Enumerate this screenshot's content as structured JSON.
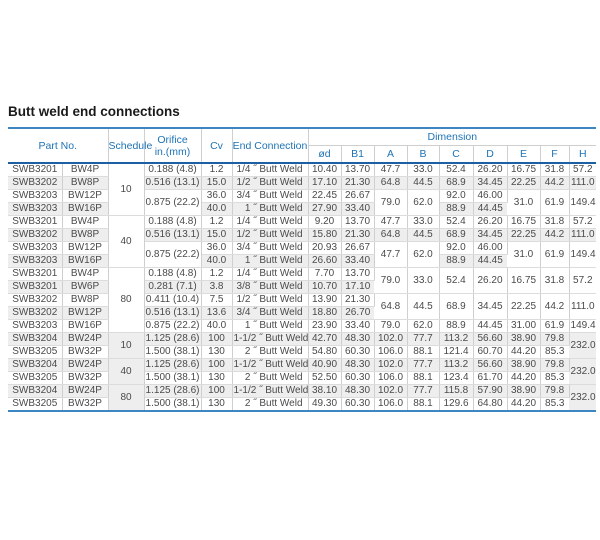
{
  "title": "Butt weld end connections",
  "colors": {
    "header_text": "#1e73b5",
    "table_outer_border": "#3c87c3",
    "header_rule": "#1c5fa3",
    "row_stripe": "#eeeeee",
    "body_text": "#4a4a4a"
  },
  "table": {
    "headers": {
      "part_no": "Part No.",
      "schedule": "Schedule",
      "orifice": "Orifice\nin.(mm)",
      "cv": "Cv",
      "end_connection": "End Connection",
      "dimension": "Dimension",
      "dim_cols": [
        "ød",
        "B1",
        "A",
        "B",
        "C",
        "D",
        "E",
        "F",
        "H"
      ]
    },
    "rows": [
      [
        {
          "t": "SWB3201"
        },
        {
          "t": "BW4P"
        },
        {
          "t": "10",
          "rs": 4
        },
        {
          "t": "0.188 (4.8)"
        },
        {
          "t": "1.2"
        },
        {
          "t": "1/4 ˝ Butt Weld"
        },
        {
          "t": "10.40"
        },
        {
          "t": "13.70"
        },
        {
          "t": "47.7"
        },
        {
          "t": "33.0"
        },
        {
          "t": "52.4"
        },
        {
          "t": "26.20"
        },
        {
          "t": "16.75"
        },
        {
          "t": "31.8"
        },
        {
          "t": "57.2"
        }
      ],
      [
        {
          "t": "SWB3202"
        },
        {
          "t": "BW8P"
        },
        {
          "t": "0.516 (13.1)"
        },
        {
          "t": "15.0"
        },
        {
          "t": "1/2 ˝ Butt Weld"
        },
        {
          "t": "17.10"
        },
        {
          "t": "21.30"
        },
        {
          "t": "64.8"
        },
        {
          "t": "44.5"
        },
        {
          "t": "68.9"
        },
        {
          "t": "34.45"
        },
        {
          "t": "22.25"
        },
        {
          "t": "44.2"
        },
        {
          "t": "111.0"
        }
      ],
      [
        {
          "t": "SWB3203"
        },
        {
          "t": "BW12P"
        },
        {
          "t": "0.875 (22.2)",
          "rs": 2
        },
        {
          "t": "36.0"
        },
        {
          "t": "3/4 ˝ Butt Weld"
        },
        {
          "t": "22.45"
        },
        {
          "t": "26.67"
        },
        {
          "t": "79.0",
          "rs": 2
        },
        {
          "t": "62.0",
          "rs": 2
        },
        {
          "t": "92.0"
        },
        {
          "t": "46.00"
        },
        {
          "t": "31.0",
          "rs": 2
        },
        {
          "t": "61.9",
          "rs": 2
        },
        {
          "t": "149.4",
          "rs": 2
        }
      ],
      [
        {
          "t": "SWB3203"
        },
        {
          "t": "BW16P"
        },
        {
          "t": "40.0"
        },
        {
          "t": "1 ˝ Butt Weld"
        },
        {
          "t": "27.90"
        },
        {
          "t": "33.40"
        },
        {
          "t": "88.9"
        },
        {
          "t": "44.45"
        }
      ],
      [
        {
          "t": "SWB3201"
        },
        {
          "t": "BW4P"
        },
        {
          "t": "40",
          "rs": 4
        },
        {
          "t": "0.188 (4.8)"
        },
        {
          "t": "1.2"
        },
        {
          "t": "1/4 ˝ Butt Weld"
        },
        {
          "t": "9.20"
        },
        {
          "t": "13.70"
        },
        {
          "t": "47.7"
        },
        {
          "t": "33.0"
        },
        {
          "t": "52.4"
        },
        {
          "t": "26.20"
        },
        {
          "t": "16.75"
        },
        {
          "t": "31.8"
        },
        {
          "t": "57.2"
        }
      ],
      [
        {
          "t": "SWB3202"
        },
        {
          "t": "BW8P"
        },
        {
          "t": "0.516 (13.1)"
        },
        {
          "t": "15.0"
        },
        {
          "t": "1/2 ˝ Butt Weld"
        },
        {
          "t": "15.80"
        },
        {
          "t": "21.30"
        },
        {
          "t": "64.8"
        },
        {
          "t": "44.5"
        },
        {
          "t": "68.9"
        },
        {
          "t": "34.45"
        },
        {
          "t": "22.25"
        },
        {
          "t": "44.2"
        },
        {
          "t": "111.0"
        }
      ],
      [
        {
          "t": "SWB3203"
        },
        {
          "t": "BW12P"
        },
        {
          "t": "0.875 (22.2)",
          "rs": 2
        },
        {
          "t": "36.0"
        },
        {
          "t": "3/4 ˝ Butt Weld"
        },
        {
          "t": "20.93"
        },
        {
          "t": "26.67"
        },
        {
          "t": "47.7",
          "rs": 2
        },
        {
          "t": "62.0",
          "rs": 2
        },
        {
          "t": "92.0"
        },
        {
          "t": "46.00"
        },
        {
          "t": "31.0",
          "rs": 2
        },
        {
          "t": "61.9",
          "rs": 2
        },
        {
          "t": "149.4",
          "rs": 2
        }
      ],
      [
        {
          "t": "SWB3203"
        },
        {
          "t": "BW16P"
        },
        {
          "t": "40.0"
        },
        {
          "t": "1 ˝ Butt Weld"
        },
        {
          "t": "26.60"
        },
        {
          "t": "33.40"
        },
        {
          "t": "88.9"
        },
        {
          "t": "44.45"
        }
      ],
      [
        {
          "t": "SWB3201"
        },
        {
          "t": "BW4P"
        },
        {
          "t": "80",
          "rs": 5
        },
        {
          "t": "0.188 (4.8)"
        },
        {
          "t": "1.2"
        },
        {
          "t": "1/4 ˝ Butt Weld"
        },
        {
          "t": "7.70"
        },
        {
          "t": "13.70"
        },
        {
          "t": "79.0",
          "rs": 2
        },
        {
          "t": "33.0",
          "rs": 2
        },
        {
          "t": "52.4",
          "rs": 2
        },
        {
          "t": "26.20",
          "rs": 2
        },
        {
          "t": "16.75",
          "rs": 2
        },
        {
          "t": "31.8",
          "rs": 2
        },
        {
          "t": "57.2",
          "rs": 2
        }
      ],
      [
        {
          "t": "SWB3201"
        },
        {
          "t": "BW6P"
        },
        {
          "t": "0.281 (7.1)"
        },
        {
          "t": "3.8"
        },
        {
          "t": "3/8 ˝ Butt Weld"
        },
        {
          "t": "10.70"
        },
        {
          "t": "17.10"
        }
      ],
      [
        {
          "t": "SWB3202"
        },
        {
          "t": "BW8P"
        },
        {
          "t": "0.411 (10.4)"
        },
        {
          "t": "7.5"
        },
        {
          "t": "1/2 ˝ Butt Weld"
        },
        {
          "t": "13.90"
        },
        {
          "t": "21.30"
        },
        {
          "t": "64.8",
          "rs": 2
        },
        {
          "t": "44.5",
          "rs": 2
        },
        {
          "t": "68.9",
          "rs": 2
        },
        {
          "t": "34.45",
          "rs": 2
        },
        {
          "t": "22.25",
          "rs": 2
        },
        {
          "t": "44.2",
          "rs": 2
        },
        {
          "t": "111.0",
          "rs": 2
        }
      ],
      [
        {
          "t": "SWB3202"
        },
        {
          "t": "BW12P"
        },
        {
          "t": "0.516 (13.1)"
        },
        {
          "t": "13.6"
        },
        {
          "t": "3/4 ˝ Butt Weld"
        },
        {
          "t": "18.80"
        },
        {
          "t": "26.70"
        }
      ],
      [
        {
          "t": "SWB3203"
        },
        {
          "t": "BW16P"
        },
        {
          "t": "0.875 (22.2)"
        },
        {
          "t": "40.0"
        },
        {
          "t": "1 ˝ Butt Weld"
        },
        {
          "t": "23.90"
        },
        {
          "t": "33.40"
        },
        {
          "t": "79.0"
        },
        {
          "t": "62.0"
        },
        {
          "t": "88.9"
        },
        {
          "t": "44.45"
        },
        {
          "t": "31.00"
        },
        {
          "t": "61.9"
        },
        {
          "t": "149.4"
        }
      ],
      [
        {
          "t": "SWB3204"
        },
        {
          "t": "BW24P"
        },
        {
          "t": "10",
          "rs": 2
        },
        {
          "t": "1.125 (28.6)"
        },
        {
          "t": "100"
        },
        {
          "t": "1-1/2 ˝ Butt Weld"
        },
        {
          "t": "42.70"
        },
        {
          "t": "48.30"
        },
        {
          "t": "102.0"
        },
        {
          "t": "77.7"
        },
        {
          "t": "113.2"
        },
        {
          "t": "56.60"
        },
        {
          "t": "38.90"
        },
        {
          "t": "79.8"
        },
        {
          "t": "232.0",
          "rs": 2
        }
      ],
      [
        {
          "t": "SWB3205"
        },
        {
          "t": "BW32P"
        },
        {
          "t": "1.500 (38.1)"
        },
        {
          "t": "130"
        },
        {
          "t": "2 ˝ Butt Weld"
        },
        {
          "t": "54.80"
        },
        {
          "t": "60.30"
        },
        {
          "t": "106.0"
        },
        {
          "t": "88.1"
        },
        {
          "t": "121.4"
        },
        {
          "t": "60.70"
        },
        {
          "t": "44.20"
        },
        {
          "t": "85.3"
        }
      ],
      [
        {
          "t": "SWB3204"
        },
        {
          "t": "BW24P"
        },
        {
          "t": "40",
          "rs": 2
        },
        {
          "t": "1.125 (28.6)"
        },
        {
          "t": "100"
        },
        {
          "t": "1-1/2 ˝ Butt Weld"
        },
        {
          "t": "40.90"
        },
        {
          "t": "48.30"
        },
        {
          "t": "102.0"
        },
        {
          "t": "77.7"
        },
        {
          "t": "113.2"
        },
        {
          "t": "56.60"
        },
        {
          "t": "38.90"
        },
        {
          "t": "79.8"
        },
        {
          "t": "232.0",
          "rs": 2
        }
      ],
      [
        {
          "t": "SWB3205"
        },
        {
          "t": "BW32P"
        },
        {
          "t": "1.500 (38.1)"
        },
        {
          "t": "130"
        },
        {
          "t": "2 ˝ Butt Weld"
        },
        {
          "t": "52.50"
        },
        {
          "t": "60.30"
        },
        {
          "t": "106.0"
        },
        {
          "t": "88.1"
        },
        {
          "t": "123.4"
        },
        {
          "t": "61.70"
        },
        {
          "t": "44.20"
        },
        {
          "t": "85.3"
        }
      ],
      [
        {
          "t": "SWB3204"
        },
        {
          "t": "BW24P"
        },
        {
          "t": "80",
          "rs": 2
        },
        {
          "t": "1.125 (28.6)"
        },
        {
          "t": "100"
        },
        {
          "t": "1-1/2 ˝ Butt Weld"
        },
        {
          "t": "38.10"
        },
        {
          "t": "48.30"
        },
        {
          "t": "102.0"
        },
        {
          "t": "77.7"
        },
        {
          "t": "115.8"
        },
        {
          "t": "57.90"
        },
        {
          "t": "38.90"
        },
        {
          "t": "79.8"
        },
        {
          "t": "232.0",
          "rs": 2
        }
      ],
      [
        {
          "t": "SWB3205"
        },
        {
          "t": "BW32P"
        },
        {
          "t": "1.500 (38.1)"
        },
        {
          "t": "130"
        },
        {
          "t": "2 ˝ Butt Weld"
        },
        {
          "t": "49.30"
        },
        {
          "t": "60.30"
        },
        {
          "t": "106.0"
        },
        {
          "t": "88.1"
        },
        {
          "t": "129.6"
        },
        {
          "t": "64.80"
        },
        {
          "t": "44.20"
        },
        {
          "t": "85.3"
        }
      ]
    ]
  }
}
